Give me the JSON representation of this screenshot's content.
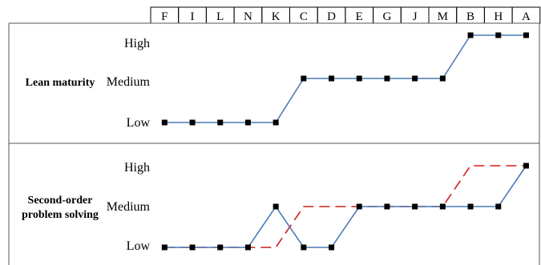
{
  "header": {
    "columns": [
      "F",
      "I",
      "L",
      "N",
      "K",
      "C",
      "D",
      "E",
      "G",
      "J",
      "M",
      "B",
      "H",
      "A"
    ]
  },
  "panels": [
    {
      "label_lines": [
        "Lean maturity"
      ],
      "levels": [
        "High",
        "Medium",
        "Low"
      ]
    },
    {
      "label_lines": [
        "Second-order",
        "problem solving"
      ],
      "levels": [
        "High",
        "Medium",
        "Low"
      ]
    }
  ],
  "colors": {
    "line_blue": "#4a7ab5",
    "dash_red": "#cc1f1f",
    "marker": "#000000",
    "border": "#000000"
  },
  "chart_data": [
    {
      "type": "line",
      "title": "",
      "categories": [
        "F",
        "I",
        "L",
        "N",
        "K",
        "C",
        "D",
        "E",
        "G",
        "J",
        "M",
        "B",
        "H",
        "A"
      ],
      "y_levels": [
        "Low",
        "Medium",
        "High"
      ],
      "series": [
        {
          "style": "solid-blue-with-square-markers",
          "values": [
            "Low",
            "Low",
            "Low",
            "Low",
            "Low",
            "Medium",
            "Medium",
            "Medium",
            "Medium",
            "Medium",
            "Medium",
            "High",
            "High",
            "High"
          ]
        }
      ]
    },
    {
      "type": "line",
      "title": "",
      "categories": [
        "F",
        "I",
        "L",
        "N",
        "K",
        "C",
        "D",
        "E",
        "G",
        "J",
        "M",
        "B",
        "H",
        "A"
      ],
      "y_levels": [
        "Low",
        "Medium",
        "High"
      ],
      "series": [
        {
          "style": "solid-blue-with-square-markers",
          "values": [
            "Low",
            "Low",
            "Low",
            "Low",
            "Medium",
            "Low",
            "Low",
            "Medium",
            "Medium",
            "Medium",
            "Medium",
            "Medium",
            "Medium",
            "High"
          ]
        },
        {
          "style": "dashed-red",
          "values": [
            "Low",
            "Low",
            "Low",
            "Low",
            "Low",
            "Medium",
            "Medium",
            "Medium",
            "Medium",
            "Medium",
            "Medium",
            "High",
            "High",
            "High"
          ]
        }
      ]
    }
  ]
}
